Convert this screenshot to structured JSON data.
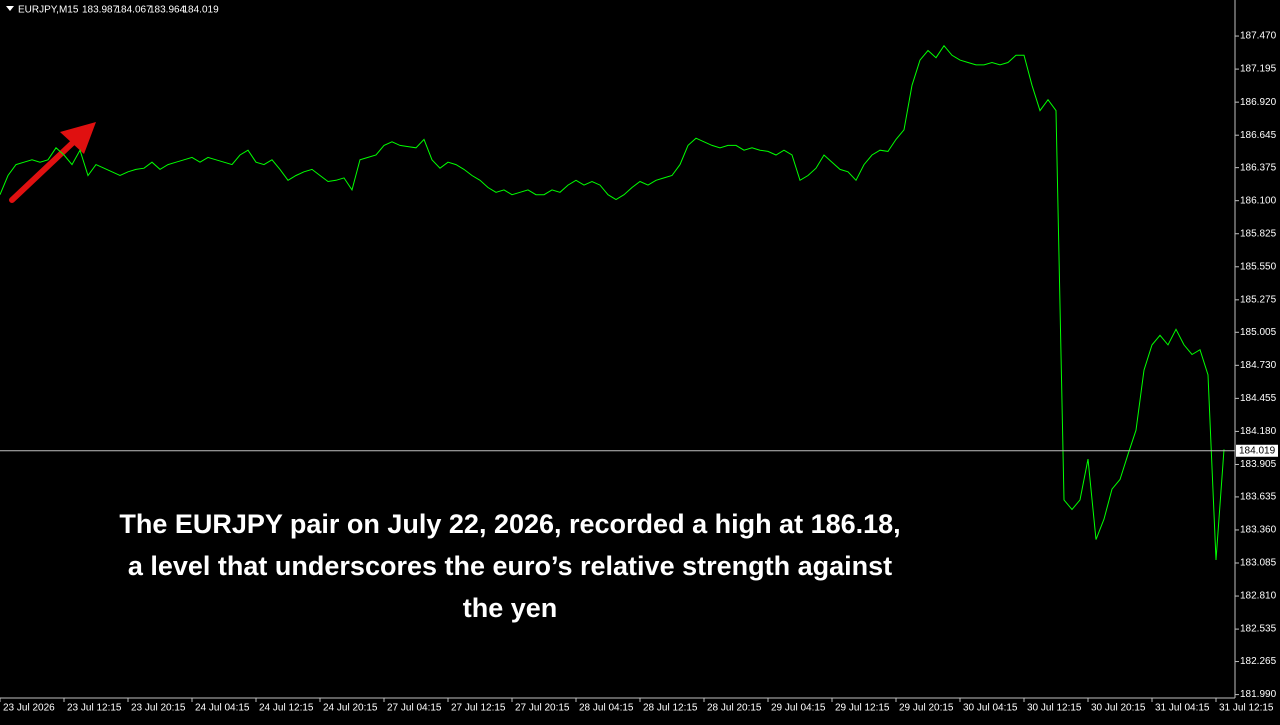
{
  "chart_data": {
    "type": "line",
    "symbol": "EURJPY,M15",
    "ohlc": [
      183.987,
      184.067,
      183.964,
      184.019
    ],
    "annotation_lines": [
      "The EURJPY pair on July 22, 2026, recorded a high at 186.18,",
      "a level that underscores the euro’s relative strength against",
      "the yen"
    ],
    "color": "#00ff00",
    "current_price": 184.019,
    "values": [
      186.15,
      186.31,
      186.4,
      186.42,
      186.44,
      186.42,
      186.44,
      186.54,
      186.48,
      186.4,
      186.52,
      186.31,
      186.4,
      186.37,
      186.34,
      186.31,
      186.34,
      186.36,
      186.37,
      186.42,
      186.36,
      186.4,
      186.42,
      186.44,
      186.46,
      186.42,
      186.46,
      186.44,
      186.42,
      186.4,
      186.48,
      186.52,
      186.42,
      186.4,
      186.44,
      186.36,
      186.27,
      186.31,
      186.34,
      186.36,
      186.31,
      186.26,
      186.27,
      186.29,
      186.19,
      186.44,
      186.46,
      186.48,
      186.56,
      186.59,
      186.56,
      186.55,
      186.54,
      186.61,
      186.44,
      186.37,
      186.42,
      186.4,
      186.36,
      186.31,
      186.27,
      186.21,
      186.17,
      186.19,
      186.15,
      186.17,
      186.19,
      186.15,
      186.15,
      186.19,
      186.17,
      186.23,
      186.27,
      186.23,
      186.26,
      186.23,
      186.15,
      186.11,
      186.15,
      186.21,
      186.26,
      186.23,
      186.27,
      186.29,
      186.31,
      186.4,
      186.56,
      186.62,
      186.59,
      186.56,
      186.54,
      186.56,
      186.56,
      186.52,
      186.54,
      186.52,
      186.51,
      186.48,
      186.52,
      186.48,
      186.27,
      186.31,
      186.37,
      186.48,
      186.42,
      186.36,
      186.34,
      186.27,
      186.4,
      186.48,
      186.52,
      186.51,
      186.61,
      186.69,
      187.06,
      187.27,
      187.35,
      187.29,
      187.39,
      187.31,
      187.27,
      187.25,
      187.23,
      187.23,
      187.25,
      187.23,
      187.25,
      187.31,
      187.31,
      187.06,
      186.85,
      186.94,
      186.85,
      183.61,
      183.53,
      183.61,
      183.95,
      183.28,
      183.45,
      183.7,
      183.78,
      183.99,
      184.19,
      184.69,
      184.9,
      184.98,
      184.9,
      185.03,
      184.9,
      184.82,
      184.86,
      184.65,
      183.11,
      184.03
    ],
    "xlim": [
      0,
      154.375
    ],
    "xticks": [
      {
        "value": 0,
        "label": "23 Jul 2026"
      },
      {
        "value": 8,
        "label": "23 Jul 12:15"
      },
      {
        "value": 16,
        "label": "23 Jul 20:15"
      },
      {
        "value": 24,
        "label": "24 Jul 04:15"
      },
      {
        "value": 32,
        "label": "24 Jul 12:15"
      },
      {
        "value": 40,
        "label": "24 Jul 20:15"
      },
      {
        "value": 48,
        "label": "27 Jul 04:15"
      },
      {
        "value": 56,
        "label": "27 Jul 12:15"
      },
      {
        "value": 64,
        "label": "27 Jul 20:15"
      },
      {
        "value": 72,
        "label": "28 Jul 04:15"
      },
      {
        "value": 80,
        "label": "28 Jul 12:15"
      },
      {
        "value": 88,
        "label": "28 Jul 20:15"
      },
      {
        "value": 96,
        "label": "29 Jul 04:15"
      },
      {
        "value": 104,
        "label": "29 Jul 12:15"
      },
      {
        "value": 112,
        "label": "29 Jul 20:15"
      },
      {
        "value": 120,
        "label": "30 Jul 04:15"
      },
      {
        "value": 128,
        "label": "30 Jul 12:15"
      },
      {
        "value": 136,
        "label": "30 Jul 20:15"
      },
      {
        "value": 144,
        "label": "31 Jul 04:15"
      },
      {
        "value": 152,
        "label": "31 Jul 12:15"
      }
    ],
    "ylim": [
      181.97,
      187.77
    ],
    "yticks": [
      {
        "value": 187.47,
        "label": "187.470"
      },
      187.195,
      {
        "value": 186.92,
        "label": "186.920"
      },
      186.645,
      186.375,
      {
        "value": 186.1,
        "label": "186.100"
      },
      185.825,
      {
        "value": 185.55,
        "label": "185.550"
      },
      185.275,
      185.005,
      {
        "value": 184.73,
        "label": "184.730"
      },
      184.455,
      {
        "value": 184.18,
        "label": "184.180"
      },
      183.905,
      183.635,
      {
        "value": 183.36,
        "label": "183.360"
      },
      183.085,
      {
        "value": 182.81,
        "label": "182.810"
      },
      182.535,
      182.265,
      {
        "value": 181.99,
        "label": "181.990"
      }
    ]
  }
}
